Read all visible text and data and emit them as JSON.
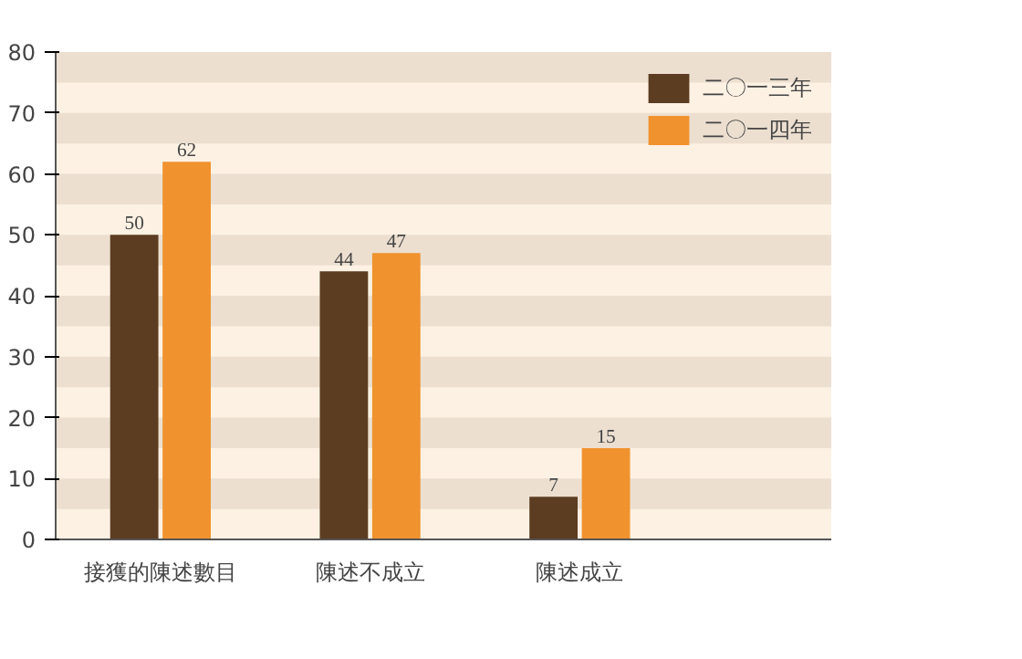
{
  "chart_data": {
    "type": "bar",
    "categories": [
      "接獲的陳述數目",
      "陳述不成立",
      "陳述成立"
    ],
    "series": [
      {
        "name": "二〇一三年",
        "color": "#5c3d22",
        "values": [
          50,
          44,
          7
        ]
      },
      {
        "name": "二〇一四年",
        "color": "#f0922e",
        "values": [
          62,
          47,
          15
        ]
      }
    ],
    "ylim": [
      0,
      80
    ],
    "yticks": [
      0,
      10,
      20,
      30,
      40,
      50,
      60,
      70,
      80
    ],
    "legend": "top right",
    "data_labels": true,
    "bands": [
      {
        "axis": "y",
        "from": 5,
        "to": 10,
        "color": "#ecdfd0"
      },
      {
        "axis": "y",
        "from": 15,
        "to": 20,
        "color": "#ecdfd0"
      },
      {
        "axis": "y",
        "from": 25,
        "to": 30,
        "color": "#ecdfd0"
      },
      {
        "axis": "y",
        "from": 35,
        "to": 40,
        "color": "#ecdfd0"
      },
      {
        "axis": "y",
        "from": 45,
        "to": 50,
        "color": "#ecdfd0"
      },
      {
        "axis": "y",
        "from": 55,
        "to": 60,
        "color": "#ecdfd0"
      },
      {
        "axis": "y",
        "from": 65,
        "to": 70,
        "color": "#ecdfd0"
      },
      {
        "axis": "y",
        "from": 75,
        "to": 80,
        "color": "#ecdfd0"
      }
    ]
  }
}
